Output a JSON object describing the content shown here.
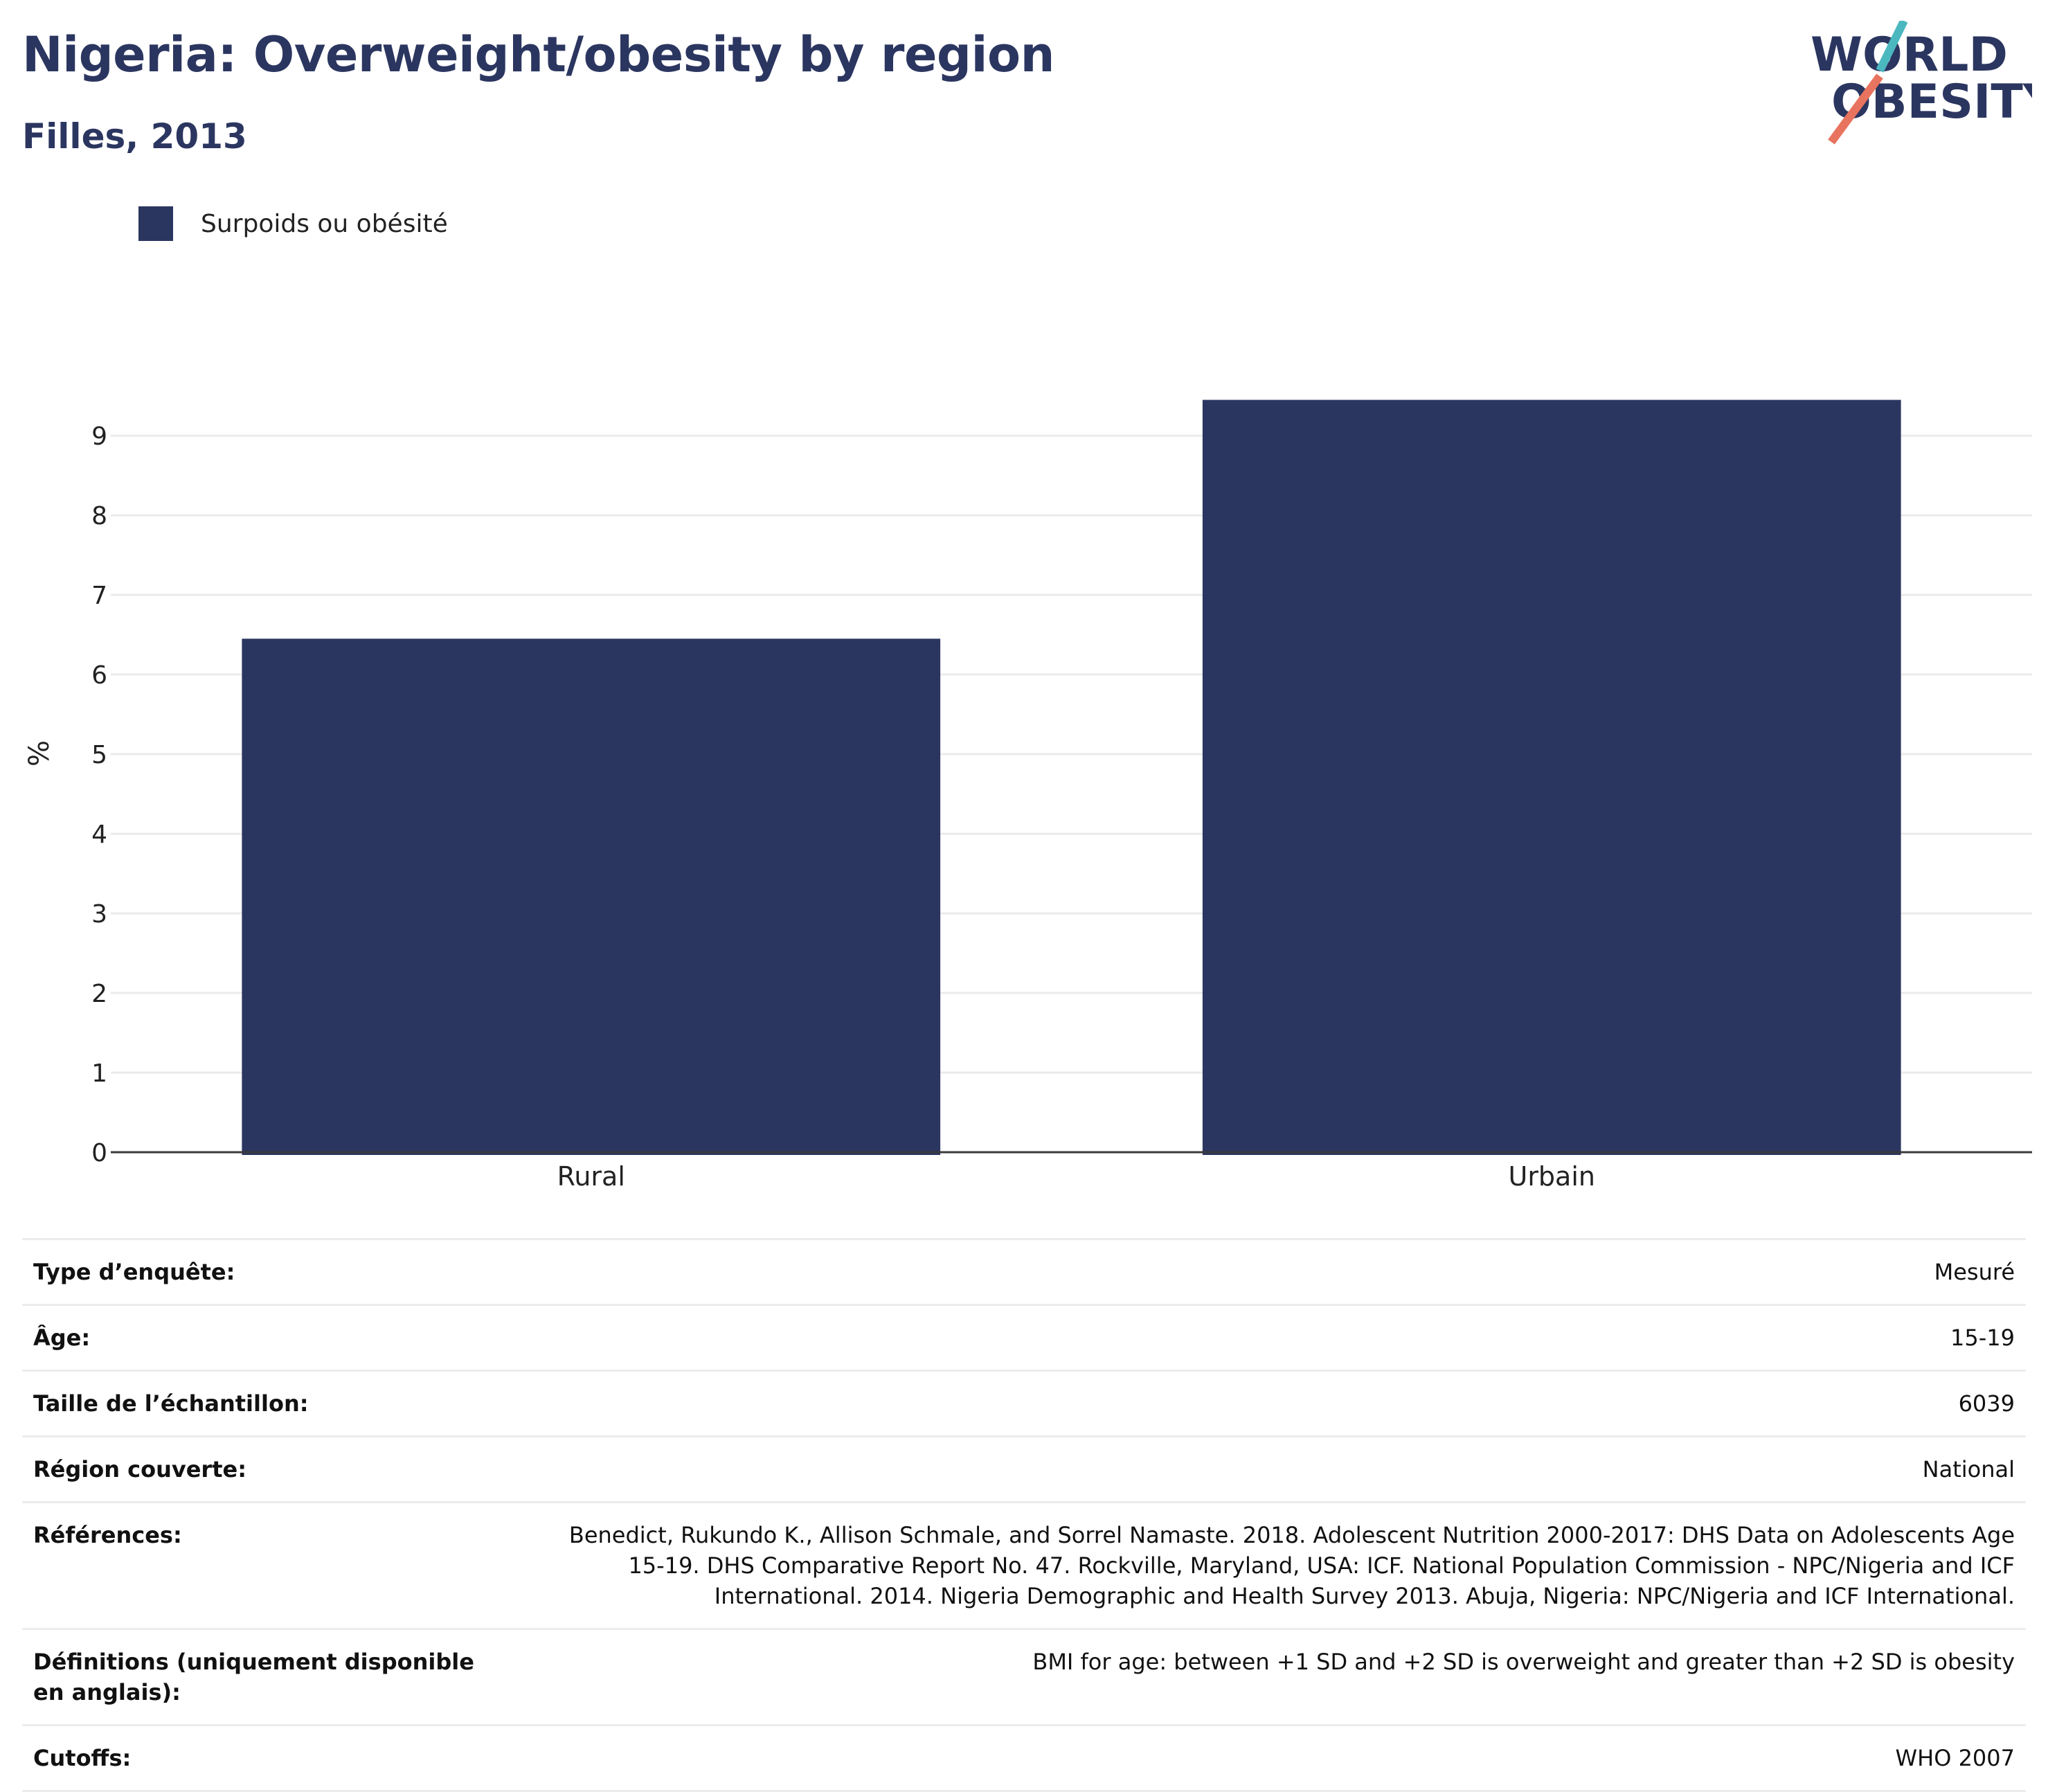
{
  "header": {
    "title": "Nigeria: Overweight/obesity by region",
    "subtitle": "Filles, 2013"
  },
  "logo": {
    "line1": "WORLD",
    "line2": "OBESITY",
    "colors": [
      "#2b3660",
      "#4bb8c0",
      "#e8735e"
    ]
  },
  "legend": [
    {
      "label": "Surpoids ou obésité",
      "color": "#2b3660"
    }
  ],
  "chart_data": {
    "type": "bar",
    "categories": [
      "Rural",
      "Urbain"
    ],
    "series": [
      {
        "name": "Surpoids ou obésité",
        "values": [
          6.45,
          9.45
        ]
      }
    ],
    "ylabel": "%",
    "ylim": [
      0,
      9.95
    ],
    "yticks": [
      0,
      1,
      2,
      3,
      4,
      5,
      6,
      7,
      8,
      9
    ],
    "grid": true,
    "legend_position": "top-left",
    "bar_color": "#2b3660"
  },
  "info": [
    {
      "key": "Type d’enquête:",
      "value": "Mesuré"
    },
    {
      "key": "Âge:",
      "value": "15-19"
    },
    {
      "key": "Taille de l’échantillon:",
      "value": "6039"
    },
    {
      "key": "Région couverte:",
      "value": "National"
    },
    {
      "key": "Références:",
      "value": "Benedict, Rukundo K., Allison Schmale, and Sorrel Namaste. 2018. Adolescent Nutrition 2000-2017: DHS Data on Adolescents Age 15-19. DHS Comparative Report No. 47. Rockville, Maryland, USA: ICF. National Population Commission - NPC/Nigeria and ICF International. 2014. Nigeria Demographic and Health Survey 2013. Abuja, Nigeria: NPC/Nigeria and ICF International."
    },
    {
      "key": "Définitions (uniquement disponible en anglais):",
      "value": "BMI for age: between +1 SD and +2 SD is overweight and greater than +2 SD is obesity"
    },
    {
      "key": "Cutoffs:",
      "value": "WHO 2007"
    }
  ]
}
